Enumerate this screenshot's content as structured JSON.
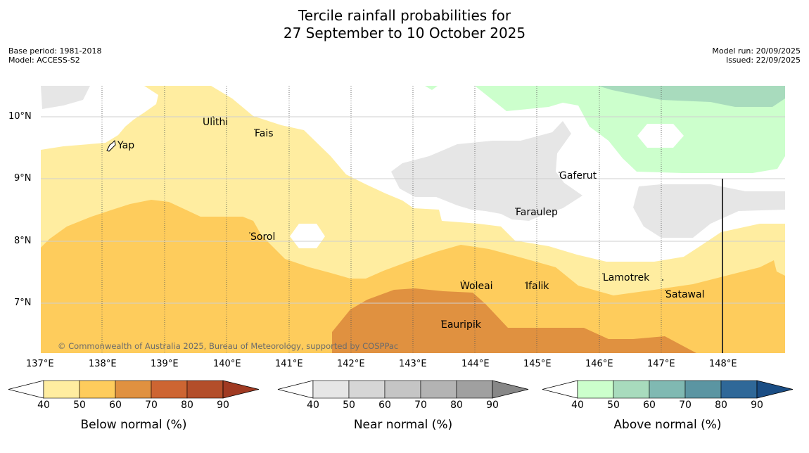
{
  "title_line1": "Tercile rainfall probabilities for",
  "title_line2": "27 September to 10 October 2025",
  "meta_left": {
    "base_period": "Base period: 1981-2018",
    "model": "Model: ACCESS-S2"
  },
  "meta_right": {
    "model_run": "Model run: 20/09/2025",
    "issued": "Issued: 22/09/2025"
  },
  "map": {
    "lon_ticks": [
      "137°E",
      "138°E",
      "139°E",
      "140°E",
      "141°E",
      "142°E",
      "143°E",
      "144°E",
      "145°E",
      "146°E",
      "147°E",
      "148°E"
    ],
    "lat_ticks": [
      "10°N",
      "9°N",
      "8°N",
      "7°N"
    ],
    "places": {
      "ulithi": "Ulithi",
      "fais": "Fais",
      "yap": "Yap",
      "gaferut": "Gaferut",
      "faraulep": "Faraulep",
      "sorol": "Sorol",
      "lamotrek": "Lamotrek",
      "woleai": "Woleai",
      "ifalik": "Ifalik",
      "satawal": "Satawal",
      "eauripik": "Eauripik"
    },
    "copyright": "© Commonwealth of Australia 2025, Bureau of Meteorology, supported by COSPPac"
  },
  "colorbars": {
    "ticks": [
      "40",
      "50",
      "60",
      "70",
      "80",
      "90"
    ],
    "below": {
      "label": "Below normal (%)",
      "colors": [
        "#ffeda0",
        "#fecc5c",
        "#e09140",
        "#cd6532",
        "#b34e2a",
        "#a03a22"
      ]
    },
    "near": {
      "label": "Near normal (%)",
      "colors": [
        "#e6e6e6",
        "#d6d6d6",
        "#c5c5c5",
        "#b3b3b3",
        "#a0a0a0",
        "#878787"
      ]
    },
    "above": {
      "label": "Above normal (%)",
      "colors": [
        "#ccffcc",
        "#a8dbbd",
        "#80b9b2",
        "#5b95a2",
        "#2f6898",
        "#1a4d84"
      ]
    }
  }
}
